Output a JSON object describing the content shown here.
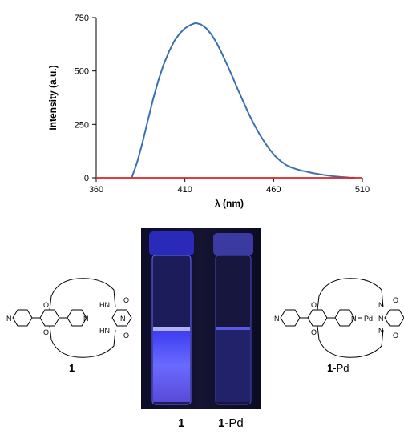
{
  "chart_data": {
    "type": "line",
    "xlabel": "λ (nm)",
    "ylabel": "Intensity (a.u.)",
    "xlim": [
      360,
      510
    ],
    "ylim": [
      0,
      750
    ],
    "xticks": [
      360,
      410,
      460,
      510
    ],
    "yticks": [
      0,
      250,
      500,
      750
    ],
    "series": [
      {
        "color": "#3a6fb0",
        "x": [
          380,
          383,
          386,
          389,
          392,
          395,
          398,
          401,
          404,
          407,
          410,
          413,
          416,
          419,
          422,
          425,
          428,
          431,
          434,
          437,
          440,
          443,
          446,
          449,
          452,
          455,
          458,
          461,
          464,
          467,
          470,
          473,
          476,
          479,
          482,
          485,
          488,
          491,
          494,
          497,
          500,
          503,
          506
        ],
        "y": [
          0,
          70,
          160,
          265,
          365,
          455,
          530,
          590,
          640,
          675,
          700,
          715,
          725,
          718,
          700,
          670,
          630,
          580,
          525,
          470,
          410,
          355,
          300,
          250,
          205,
          165,
          130,
          100,
          78,
          60,
          48,
          40,
          33,
          28,
          22,
          18,
          14,
          10,
          7,
          5,
          3,
          1,
          0
        ]
      },
      {
        "color": "#e02020",
        "x": [
          360,
          510
        ],
        "y": [
          0,
          0
        ]
      }
    ]
  },
  "photo": {
    "caption_1": "1",
    "caption_2_bold": "1",
    "caption_2_rest": "-Pd"
  },
  "molecules": {
    "left_label": "1",
    "right_label_bold": "1",
    "right_label_rest": "-Pd",
    "atom_n": "N",
    "atom_o": "O",
    "atom_hn": "HN",
    "atom_pd": "Pd"
  }
}
